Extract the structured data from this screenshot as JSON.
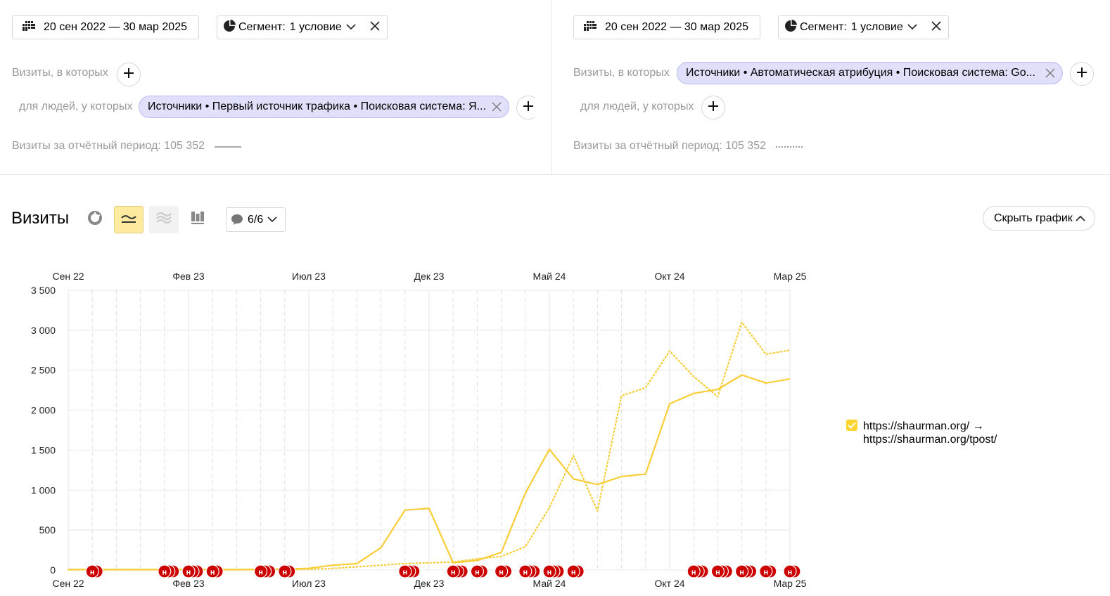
{
  "left_panel": {
    "date_range": "20 сен 2022 — 30 мар 2025",
    "segment_label": "Сегмент:",
    "segment_value": "1 условие",
    "visits_filter_label": "Визиты, в которых",
    "people_filter_label": "для людей, у которых",
    "people_chip": "Источники • Первый источник трафика • Поисковая система: Я...",
    "period_visits": "Визиты за отчётный период: 105 352"
  },
  "right_panel": {
    "date_range": "20 сен 2022 — 30 мар 2025",
    "segment_label": "Сегмент:",
    "segment_value": "1 условие",
    "visits_filter_label": "Визиты, в которых",
    "visits_chip": "Источники • Автоматическая атрибуция • Поисковая система: Go...",
    "people_filter_label": "для людей, у которых",
    "period_visits": "Визиты за отчётный период: 105 352"
  },
  "report": {
    "title": "Визиты",
    "annotations_count": "6/6",
    "hide_chart_label": "Скрыть график"
  },
  "icons": {
    "calendar": "calendar-icon",
    "segment": "pie-icon",
    "chevron": "chevron-down-icon",
    "close": "close-icon",
    "plus": "plus-icon",
    "chart_types": [
      "pie-chart-icon",
      "line-chart-icon",
      "area-chart-icon",
      "bar-chart-icon"
    ],
    "comment": "comment-icon",
    "annotation_marker": "holiday-marker-icon"
  },
  "colors": {
    "series": "#f9cd36",
    "chip_bg": "#e0e0fb",
    "active_tool": "#ffeba0",
    "marker": "#cc0000"
  },
  "chart_data": {
    "type": "line",
    "x_tick_labels": [
      "Сен 22",
      "Фев 23",
      "Июл 23",
      "Дек 23",
      "Май 24",
      "Окт 24",
      "Мар 25"
    ],
    "y_tick_labels": [
      "0",
      "500",
      "1 000",
      "1 500",
      "2 000",
      "2 500",
      "3 000",
      "3 500"
    ],
    "ylim": [
      0,
      3500
    ],
    "x": [
      "Сен 22",
      "Окт 22",
      "Ноя 22",
      "Дек 22",
      "Янв 23",
      "Фев 23",
      "Мар 23",
      "Апр 23",
      "Май 23",
      "Июн 23",
      "Июл 23",
      "Авг 23",
      "Сен 23",
      "Окт 23",
      "Ноя 23",
      "Дек 23",
      "Янв 24",
      "Фев 24",
      "Мар 24",
      "Апр 24",
      "Май 24",
      "Июн 24",
      "Июл 24",
      "Авг 24",
      "Сен 24",
      "Окт 24",
      "Ноя 24",
      "Дек 24",
      "Янв 25",
      "Фев 25",
      "Мар 25"
    ],
    "series": [
      {
        "style": "solid",
        "values": [
          5,
          5,
          5,
          5,
          5,
          5,
          5,
          5,
          8,
          12,
          20,
          60,
          80,
          280,
          750,
          770,
          90,
          120,
          220,
          960,
          1510,
          1140,
          1070,
          1170,
          1200,
          2080,
          2210,
          2260,
          2440,
          2340,
          2390
        ]
      },
      {
        "style": "dotted",
        "values": [
          3,
          3,
          3,
          3,
          3,
          3,
          3,
          3,
          4,
          6,
          10,
          20,
          40,
          60,
          80,
          90,
          100,
          140,
          170,
          290,
          780,
          1430,
          740,
          2180,
          2280,
          2740,
          2420,
          2170,
          3100,
          2700,
          2750
        ]
      }
    ],
    "legend": [
      "https://shaurman.org/ → https://shaurman.org/tpost/"
    ],
    "annotation_marker_label": "н",
    "annotation_groups": [
      {
        "x": "Окт 22",
        "count": 2
      },
      {
        "x": "Янв 23",
        "count": 3
      },
      {
        "x": "Фев 23",
        "count": 3
      },
      {
        "x": "Мар 23",
        "count": 2
      },
      {
        "x": "Май 23",
        "count": 3
      },
      {
        "x": "Июн 23",
        "count": 2
      },
      {
        "x": "Ноя 23",
        "count": 3
      },
      {
        "x": "Янв 24",
        "count": 3
      },
      {
        "x": "Фев 24",
        "count": 2
      },
      {
        "x": "Мар 24",
        "count": 2
      },
      {
        "x": "Апр 24",
        "count": 3
      },
      {
        "x": "Май 24",
        "count": 3
      },
      {
        "x": "Июн 24",
        "count": 2
      },
      {
        "x": "Ноя 24",
        "count": 3
      },
      {
        "x": "Дек 24",
        "count": 3
      },
      {
        "x": "Янв 25",
        "count": 3
      },
      {
        "x": "Фев 25",
        "count": 2
      },
      {
        "x": "Мар 25",
        "count": 2
      }
    ],
    "grid": true,
    "legend_position": "right"
  }
}
